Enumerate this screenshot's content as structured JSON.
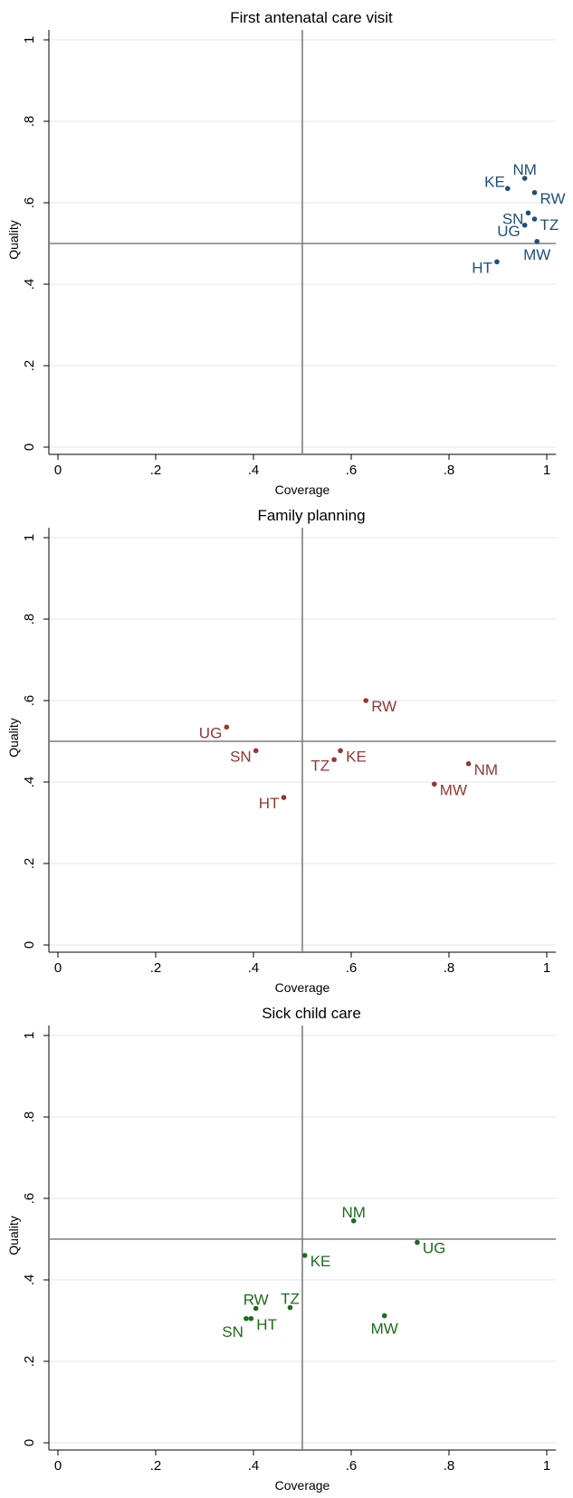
{
  "chart_data": [
    {
      "type": "scatter",
      "title": "First antenatal care visit",
      "xlabel": "Coverage",
      "ylabel": "Quality",
      "xlim": [
        0,
        1
      ],
      "ylim": [
        0,
        1
      ],
      "xticks": [
        0,
        0.2,
        0.4,
        0.6,
        0.8,
        1
      ],
      "yticks": [
        0,
        0.2,
        0.4,
        0.6,
        0.8,
        1
      ],
      "xtick_labels": [
        "0",
        ".2",
        ".4",
        ".6",
        ".8",
        "1"
      ],
      "ytick_labels": [
        "0",
        ".2",
        ".4",
        ".6",
        ".8",
        "1"
      ],
      "reference_lines": {
        "x": 0.5,
        "y": 0.5
      },
      "color": "#1f4e79",
      "points": [
        {
          "label": "KE",
          "x": 0.92,
          "y": 0.635,
          "pos": "upper-left"
        },
        {
          "label": "NM",
          "x": 0.955,
          "y": 0.66,
          "pos": "above"
        },
        {
          "label": "RW",
          "x": 0.975,
          "y": 0.625,
          "pos": "right"
        },
        {
          "label": "SN",
          "x": 0.962,
          "y": 0.575,
          "pos": "left"
        },
        {
          "label": "TZ",
          "x": 0.975,
          "y": 0.56,
          "pos": "right"
        },
        {
          "label": "UG",
          "x": 0.955,
          "y": 0.545,
          "pos": "left"
        },
        {
          "label": "MW",
          "x": 0.98,
          "y": 0.505,
          "pos": "below"
        },
        {
          "label": "HT",
          "x": 0.898,
          "y": 0.455,
          "pos": "left"
        }
      ]
    },
    {
      "type": "scatter",
      "title": "Family planning",
      "xlabel": "Coverage",
      "ylabel": "Quality",
      "xlim": [
        0,
        1
      ],
      "ylim": [
        0,
        1
      ],
      "xticks": [
        0,
        0.2,
        0.4,
        0.6,
        0.8,
        1
      ],
      "yticks": [
        0,
        0.2,
        0.4,
        0.6,
        0.8,
        1
      ],
      "xtick_labels": [
        "0",
        ".2",
        ".4",
        ".6",
        ".8",
        "1"
      ],
      "ytick_labels": [
        "0",
        ".2",
        ".4",
        ".6",
        ".8",
        "1"
      ],
      "reference_lines": {
        "x": 0.5,
        "y": 0.5
      },
      "color": "#943634",
      "points": [
        {
          "label": "RW",
          "x": 0.63,
          "y": 0.6,
          "pos": "right"
        },
        {
          "label": "UG",
          "x": 0.345,
          "y": 0.535,
          "pos": "left"
        },
        {
          "label": "SN",
          "x": 0.405,
          "y": 0.477,
          "pos": "left"
        },
        {
          "label": "KE",
          "x": 0.578,
          "y": 0.477,
          "pos": "right"
        },
        {
          "label": "TZ",
          "x": 0.565,
          "y": 0.455,
          "pos": "left"
        },
        {
          "label": "NM",
          "x": 0.84,
          "y": 0.445,
          "pos": "right"
        },
        {
          "label": "MW",
          "x": 0.77,
          "y": 0.395,
          "pos": "right"
        },
        {
          "label": "HT",
          "x": 0.462,
          "y": 0.362,
          "pos": "left"
        }
      ]
    },
    {
      "type": "scatter",
      "title": "Sick child care",
      "xlabel": "Coverage",
      "ylabel": "Quality",
      "xlim": [
        0,
        1
      ],
      "ylim": [
        0,
        1
      ],
      "xticks": [
        0,
        0.2,
        0.4,
        0.6,
        0.8,
        1
      ],
      "yticks": [
        0,
        0.2,
        0.4,
        0.6,
        0.8,
        1
      ],
      "xtick_labels": [
        "0",
        ".2",
        ".4",
        ".6",
        ".8",
        "1"
      ],
      "ytick_labels": [
        "0",
        ".2",
        ".4",
        ".6",
        ".8",
        "1"
      ],
      "reference_lines": {
        "x": 0.5,
        "y": 0.5
      },
      "color": "#1d6b1d",
      "points": [
        {
          "label": "NM",
          "x": 0.605,
          "y": 0.545,
          "pos": "above"
        },
        {
          "label": "UG",
          "x": 0.735,
          "y": 0.492,
          "pos": "right"
        },
        {
          "label": "KE",
          "x": 0.505,
          "y": 0.46,
          "pos": "right"
        },
        {
          "label": "RW",
          "x": 0.405,
          "y": 0.33,
          "pos": "above"
        },
        {
          "label": "TZ",
          "x": 0.475,
          "y": 0.332,
          "pos": "above"
        },
        {
          "label": "SN",
          "x": 0.385,
          "y": 0.305,
          "pos": "lower-left"
        },
        {
          "label": "HT",
          "x": 0.395,
          "y": 0.305,
          "pos": "right"
        },
        {
          "label": "MW",
          "x": 0.668,
          "y": 0.312,
          "pos": "below"
        }
      ]
    }
  ]
}
